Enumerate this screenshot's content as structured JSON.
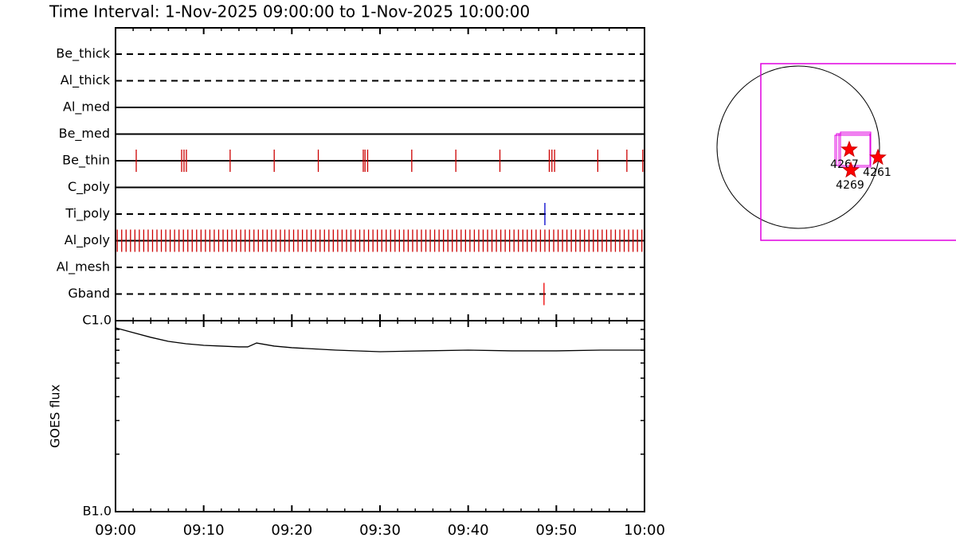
{
  "title": "Time Interval:  1-Nov-2025 09:00:00 to  1-Nov-2025 10:00:00",
  "chart_data": [
    {
      "type": "timeline",
      "xlim": [
        0,
        60
      ],
      "xticks": [
        0,
        10,
        20,
        30,
        40,
        50,
        60
      ],
      "minor_xticks": [
        2,
        4,
        6,
        8,
        12,
        14,
        16,
        18,
        22,
        24,
        26,
        28,
        32,
        34,
        36,
        38,
        42,
        44,
        46,
        48,
        52,
        54,
        56,
        58
      ],
      "rows": [
        {
          "name": "Be_thick",
          "style": "dashed",
          "color": "#cc0000",
          "times": []
        },
        {
          "name": "Al_thick",
          "style": "dashed",
          "color": "#cc0000",
          "times": []
        },
        {
          "name": "Al_med",
          "style": "solid",
          "color": "#cc0000",
          "times": []
        },
        {
          "name": "Be_med",
          "style": "solid",
          "color": "#cc0000",
          "times": []
        },
        {
          "name": "Be_thin",
          "style": "solid",
          "color": "#cc0000",
          "times": [
            2.35,
            7.5,
            7.77,
            8.04,
            13.0,
            18.0,
            23.0,
            28.1,
            28.3,
            28.6,
            33.6,
            38.6,
            43.6,
            49.2,
            49.5,
            49.8,
            54.7,
            58.0,
            59.8
          ]
        },
        {
          "name": "C_poly",
          "style": "solid",
          "color": "#cc0000",
          "times": []
        },
        {
          "name": "Ti_poly",
          "style": "dashed",
          "color": "#0000cc",
          "times": [
            48.7
          ]
        },
        {
          "name": "Al_poly",
          "style": "solid",
          "color": "#cc0000",
          "times": [
            0.2,
            0.7,
            1.2,
            1.7,
            2.2,
            2.7,
            3.2,
            3.7,
            4.2,
            4.7,
            5.2,
            5.7,
            6.2,
            6.7,
            7.2,
            7.7,
            8.2,
            8.7,
            9.2,
            9.7,
            10.2,
            10.7,
            11.2,
            11.7,
            12.2,
            12.7,
            13.2,
            13.7,
            14.2,
            14.7,
            15.2,
            15.7,
            16.2,
            16.7,
            17.2,
            17.7,
            18.2,
            18.7,
            19.2,
            19.7,
            20.2,
            20.7,
            21.2,
            21.7,
            22.2,
            22.7,
            23.2,
            23.7,
            24.2,
            24.7,
            25.2,
            25.7,
            26.2,
            26.7,
            27.2,
            27.7,
            28.2,
            28.7,
            29.2,
            29.7,
            30.2,
            30.7,
            31.2,
            31.7,
            32.2,
            32.7,
            33.2,
            33.7,
            34.2,
            34.7,
            35.2,
            35.7,
            36.2,
            36.7,
            37.2,
            37.7,
            38.2,
            38.7,
            39.2,
            39.7,
            40.2,
            40.7,
            41.2,
            41.7,
            42.2,
            42.7,
            43.2,
            43.7,
            44.2,
            44.7,
            45.2,
            45.7,
            46.2,
            46.7,
            47.2,
            47.7,
            48.2,
            48.7,
            49.2,
            49.7,
            50.2,
            50.7,
            51.2,
            51.7,
            52.2,
            52.7,
            53.2,
            53.7,
            54.2,
            54.7,
            55.2,
            55.7,
            56.2,
            56.7,
            57.2,
            57.7,
            58.2,
            58.7,
            59.2,
            59.7
          ]
        },
        {
          "name": "Al_mesh",
          "style": "dashed",
          "color": "#cc0000",
          "times": []
        },
        {
          "name": "Gband",
          "style": "dashed",
          "color": "#ee0000",
          "times": [
            48.6
          ]
        }
      ]
    },
    {
      "type": "line",
      "ylabel": "GOES flux",
      "log": true,
      "xlim": [
        0,
        60
      ],
      "xticks": [
        {
          "value": 0,
          "label": "09:00"
        },
        {
          "value": 10,
          "label": "09:10"
        },
        {
          "value": 20,
          "label": "09:20"
        },
        {
          "value": 30,
          "label": "09:30"
        },
        {
          "value": 40,
          "label": "09:40"
        },
        {
          "value": 50,
          "label": "09:50"
        },
        {
          "value": 60,
          "label": "10:00"
        }
      ],
      "minor_xticks": [
        2,
        4,
        6,
        8,
        12,
        14,
        16,
        18,
        22,
        24,
        26,
        28,
        32,
        34,
        36,
        38,
        42,
        44,
        46,
        48,
        52,
        54,
        56,
        58
      ],
      "ylim": [
        1e-07,
        1e-06
      ],
      "yticks": [
        {
          "value": 1e-07,
          "label": "B1.0"
        },
        {
          "value": 1e-06,
          "label": "C1.0"
        }
      ],
      "minor_yticks": [
        2e-07,
        3e-07,
        4e-07,
        5e-07,
        6e-07,
        7e-07,
        8e-07,
        9e-07
      ],
      "x": [
        0,
        2,
        4,
        6,
        8,
        10,
        12,
        14,
        15,
        16,
        18,
        20,
        25,
        30,
        35,
        40,
        45,
        50,
        55,
        60
      ],
      "series": [
        {
          "color": "#000000",
          "values": [
            9.17e-07,
            8.66e-07,
            8.18e-07,
            7.79e-07,
            7.57e-07,
            7.43e-07,
            7.36e-07,
            7.29e-07,
            7.29e-07,
            7.64e-07,
            7.36e-07,
            7.22e-07,
            7.01e-07,
            6.88e-07,
            6.95e-07,
            7.01e-07,
            6.95e-07,
            6.95e-07,
            7.01e-07,
            7.01e-07
          ]
        }
      ]
    }
  ],
  "map": {
    "regions": [
      {
        "label": "4267"
      },
      {
        "label": "4261"
      },
      {
        "label": "4269"
      }
    ]
  }
}
